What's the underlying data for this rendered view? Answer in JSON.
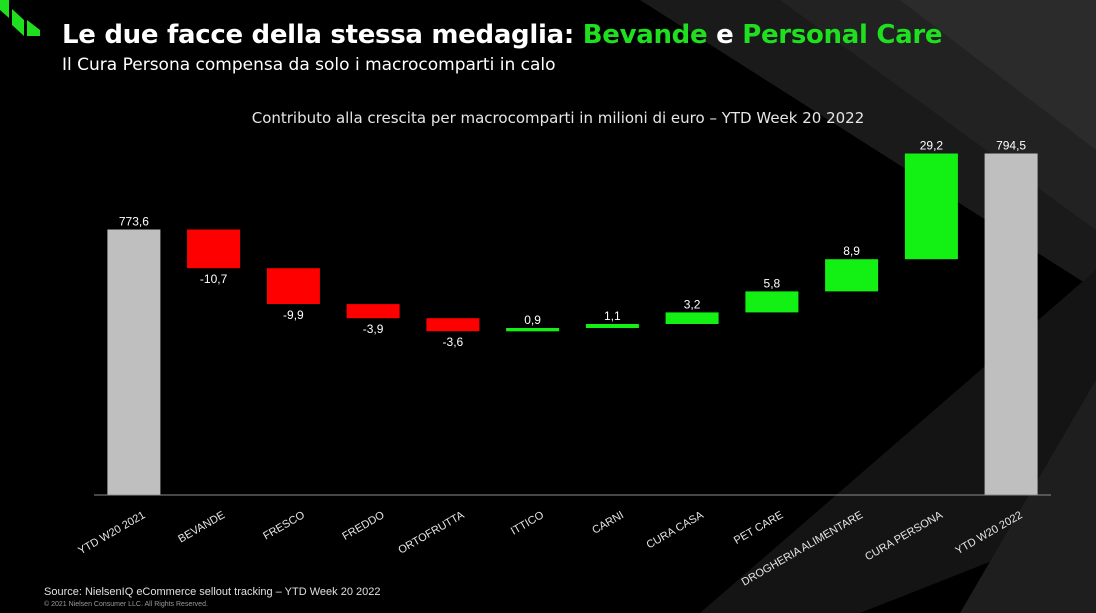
{
  "header": {
    "title_prefix": "Le due facce della stessa medaglia:",
    "title_highlight_1": "Bevande",
    "title_conjunction": "e",
    "title_highlight_2": "Personal Care",
    "subtitle": "Il Cura Persona compensa da solo i macrocomparti in calo"
  },
  "colors": {
    "background": "#000000",
    "accent_green": "#1fe01f",
    "increase": "#13f013",
    "decrease": "#ff0000",
    "total": "#bfbfbf",
    "axis": "#8c8c8c"
  },
  "chart_data": {
    "type": "waterfall",
    "title": "Contributo alla crescita per macrocomparti in milioni di euro – YTD Week 20 2022",
    "categories": [
      "YTD W20 2021",
      "BEVANDE",
      "FRESCO",
      "FREDDO",
      "ORTOFRUTTA",
      "ITTICO",
      "CARNI",
      "CURA CASA",
      "PET CARE",
      "DROGHERIA ALIMENTARE",
      "CURA PERSONA",
      "YTD W20 2022"
    ],
    "values": [
      773.6,
      -10.7,
      -9.9,
      -3.9,
      -3.6,
      0.9,
      1.1,
      3.2,
      5.8,
      8.9,
      29.2,
      794.5
    ],
    "labels": [
      "773,6",
      "-10,7",
      "-9,9",
      "-3,9",
      "-3,6",
      "0,9",
      "1,1",
      "3,2",
      "5,8",
      "8,9",
      "29,2",
      "794,5"
    ],
    "kinds": [
      "total",
      "delta",
      "delta",
      "delta",
      "delta",
      "delta",
      "delta",
      "delta",
      "delta",
      "delta",
      "delta",
      "total"
    ],
    "grid": false,
    "legend": "none"
  },
  "footer": {
    "source": "Source:  NielsenIQ eCommerce sellout tracking – YTD Week 20 2022",
    "copyright": "© 2021 Nielsen Consumer LLC. All Rights Reserved."
  }
}
